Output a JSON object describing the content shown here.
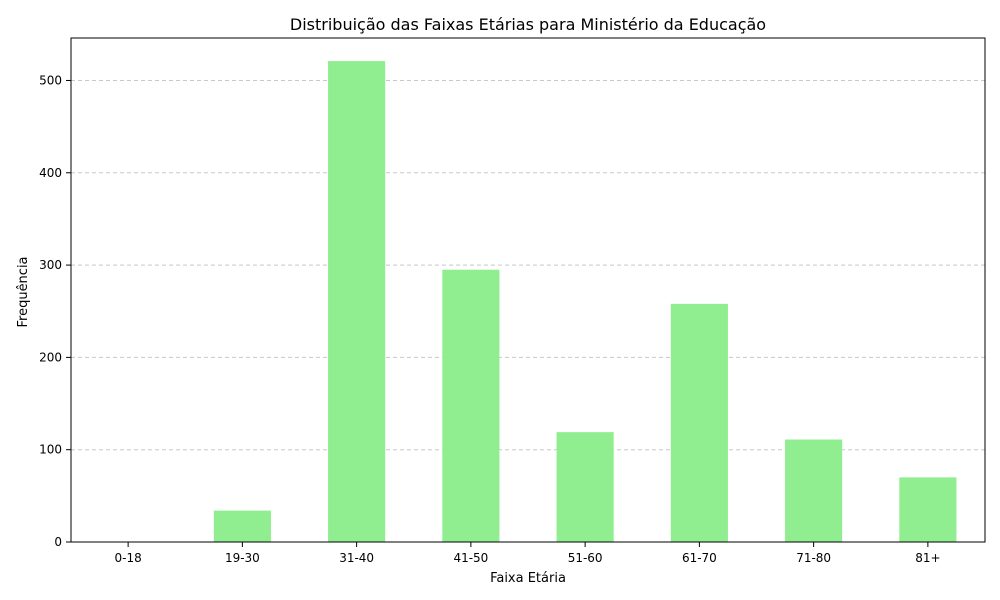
{
  "chart_data": {
    "type": "bar",
    "title": "Distribuição das Faixas Etárias para Ministério da Educação",
    "xlabel": "Faixa Etária",
    "ylabel": "Frequência",
    "categories": [
      "0-18",
      "19-30",
      "31-40",
      "41-50",
      "51-60",
      "61-70",
      "71-80",
      "81+"
    ],
    "values": [
      0,
      34,
      521,
      295,
      119,
      258,
      111,
      70
    ],
    "ylim": [
      0,
      546
    ],
    "yticks": [
      0,
      100,
      200,
      300,
      400,
      500
    ],
    "grid": "y-dashed",
    "legend": "none"
  },
  "colors": {
    "bar": "#90ee90",
    "grid": "#c8c8c8",
    "axis": "#000000"
  }
}
